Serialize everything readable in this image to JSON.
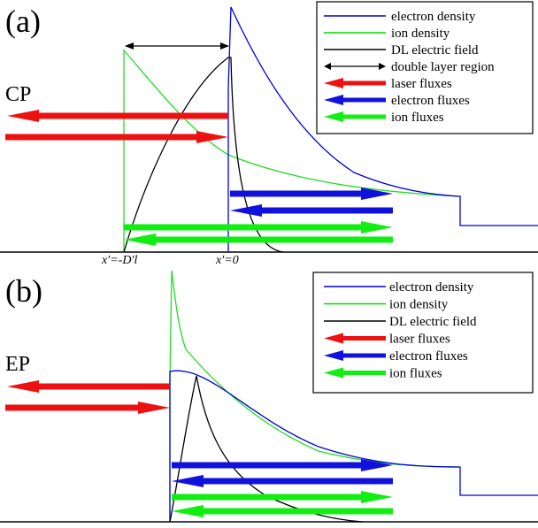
{
  "panel_a": {
    "tag": "(a)",
    "mode": "CP",
    "x_left_label": "x′=-D′l",
    "x_zero_label": "x′=0",
    "legend": [
      {
        "label": "electron density",
        "color": "#0000cc",
        "kind": "line"
      },
      {
        "label": "ion density",
        "color": "#00dd00",
        "kind": "line"
      },
      {
        "label": "DL electric field",
        "color": "#000000",
        "kind": "line"
      },
      {
        "label": "double layer region",
        "color": "#000000",
        "kind": "double-arrow"
      },
      {
        "label": "laser fluxes",
        "color": "#ee1111",
        "kind": "fat-arrow"
      },
      {
        "label": "electron fluxes",
        "color": "#1111dd",
        "kind": "fat-arrow"
      },
      {
        "label": "ion fluxes",
        "color": "#11ee11",
        "kind": "fat-arrow"
      }
    ]
  },
  "panel_b": {
    "tag": "(b)",
    "mode": "EP",
    "legend": [
      {
        "label": "electron density",
        "color": "#0000cc",
        "kind": "line"
      },
      {
        "label": "ion density",
        "color": "#00dd00",
        "kind": "line"
      },
      {
        "label": "DL electric field",
        "color": "#000000",
        "kind": "line"
      },
      {
        "label": "laser fluxes",
        "color": "#ee1111",
        "kind": "fat-arrow"
      },
      {
        "label": "electron fluxes",
        "color": "#1111dd",
        "kind": "fat-arrow"
      },
      {
        "label": "ion fluxes",
        "color": "#11ee11",
        "kind": "fat-arrow"
      }
    ]
  }
}
